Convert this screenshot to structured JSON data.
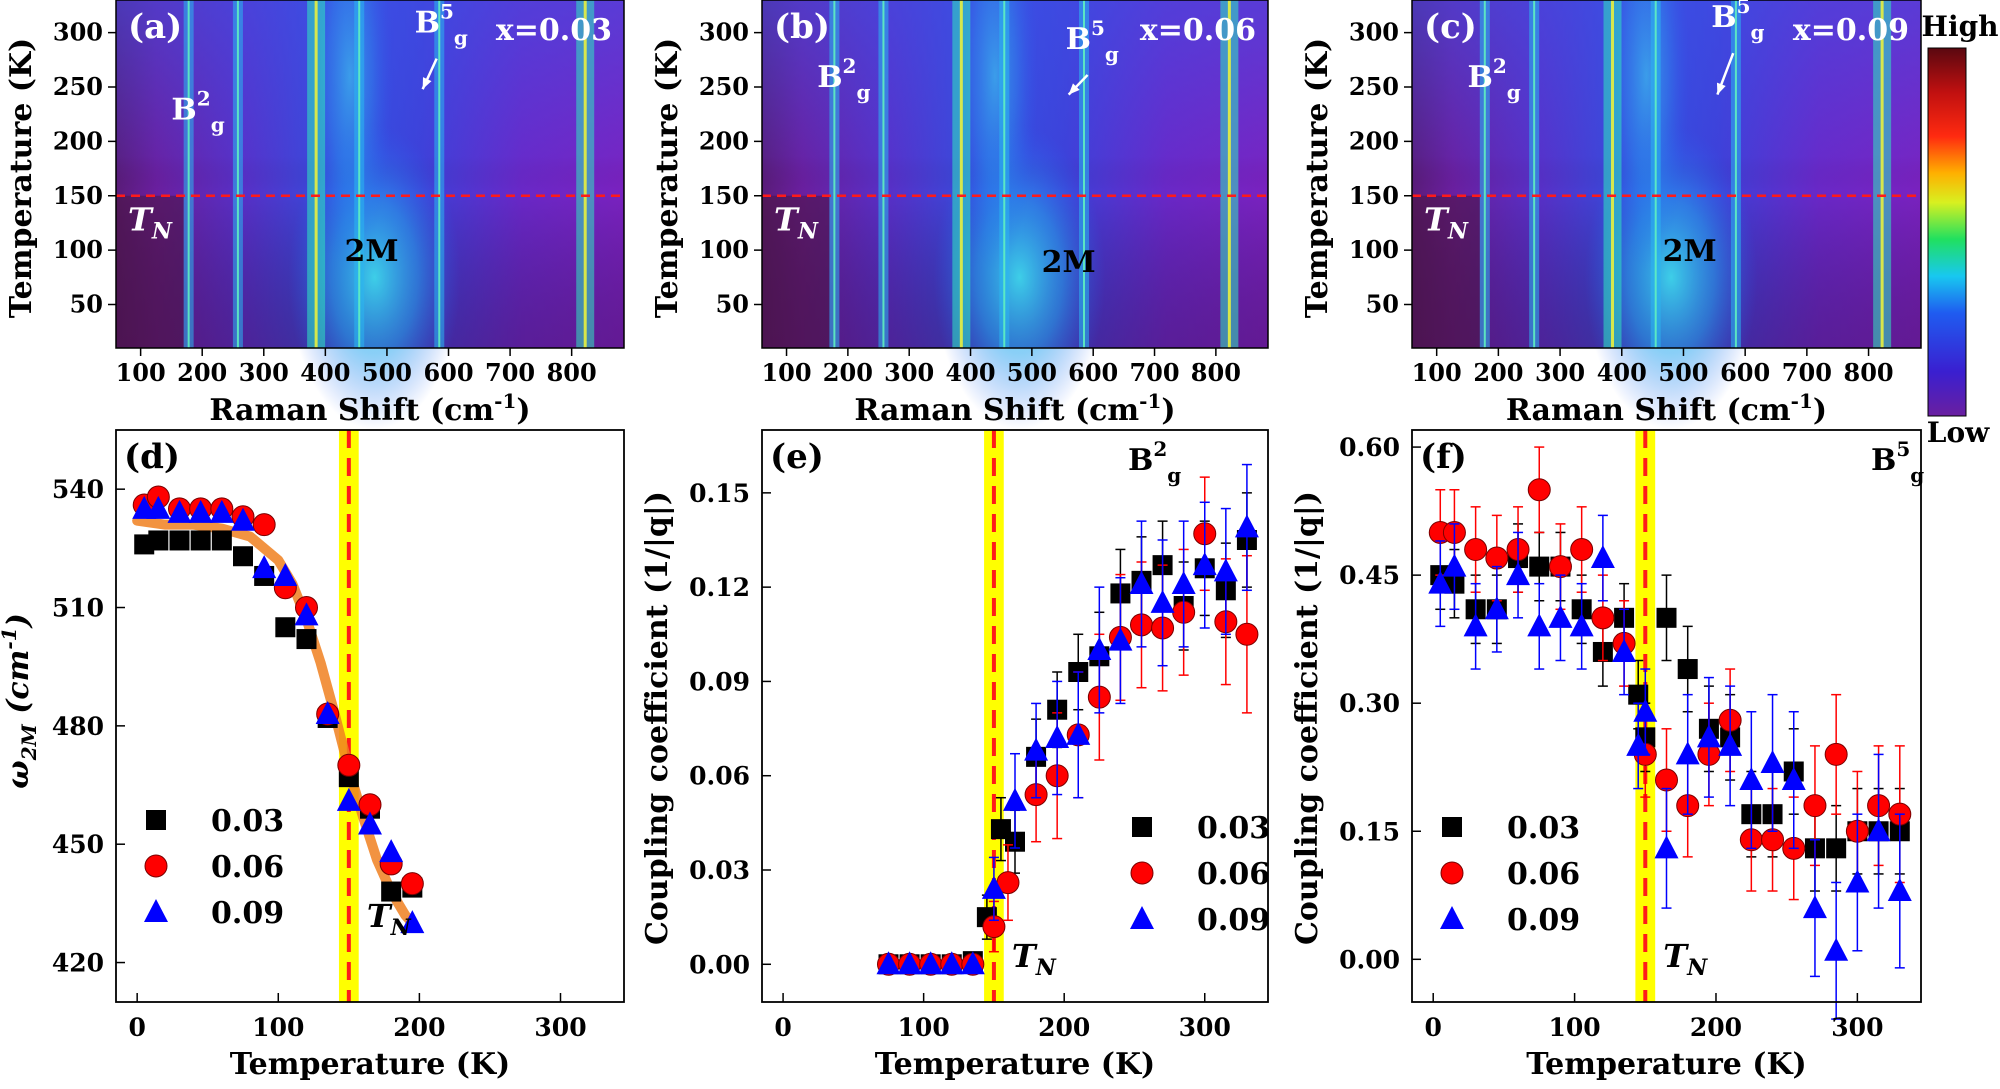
{
  "colorbar": {
    "high": "High",
    "low": "Low"
  },
  "chart_data": [
    {
      "panel": "(a)",
      "type": "heatmap",
      "composition": "x=0.03",
      "xlabel": "Raman Shift (cm",
      "xlabel_sup": "-1",
      "xlabel_tail": ")",
      "ylabel": "Temperature (K)",
      "xticks": [
        100,
        200,
        300,
        400,
        500,
        600,
        700,
        800
      ],
      "xlim": [
        60,
        885
      ],
      "yticks": [
        50,
        100,
        150,
        200,
        250,
        300
      ],
      "ylim": [
        10,
        330
      ],
      "tn_line": 150,
      "tn_label": "T",
      "tn_sub": "N",
      "phonon_lines": [
        178,
        258,
        385,
        455,
        585,
        822
      ],
      "annotations": [
        {
          "text": "B",
          "sup": "2",
          "sub": "g",
          "x": 150,
          "y": 220
        },
        {
          "text": "B",
          "sup": "5",
          "sub": "g",
          "x": 545,
          "y": 300,
          "arrow_to": [
            558,
            248
          ]
        },
        {
          "text": "2M",
          "x": 475,
          "y": 90
        }
      ]
    },
    {
      "panel": "(b)",
      "type": "heatmap",
      "composition": "x=0.06",
      "xlabel": "Raman Shift (cm",
      "xlabel_sup": "-1",
      "xlabel_tail": ")",
      "ylabel": "Temperature (K)",
      "xticks": [
        100,
        200,
        300,
        400,
        500,
        600,
        700,
        800
      ],
      "xlim": [
        60,
        885
      ],
      "yticks": [
        50,
        100,
        150,
        200,
        250,
        300
      ],
      "ylim": [
        10,
        330
      ],
      "tn_line": 150,
      "tn_label": "T",
      "tn_sub": "N",
      "phonon_lines": [
        178,
        258,
        385,
        455,
        585,
        822
      ],
      "annotations": [
        {
          "text": "B",
          "sup": "2",
          "sub": "g",
          "x": 150,
          "y": 250
        },
        {
          "text": "B",
          "sup": "5",
          "sub": "g",
          "x": 555,
          "y": 285,
          "arrow_to": [
            560,
            243
          ]
        },
        {
          "text": "2M",
          "x": 560,
          "y": 80
        }
      ]
    },
    {
      "panel": "(c)",
      "type": "heatmap",
      "composition": "x=0.09",
      "xlabel": "Raman Shift (cm",
      "xlabel_sup": "-1",
      "xlabel_tail": ")",
      "ylabel": "Temperature (K)",
      "xticks": [
        100,
        200,
        300,
        400,
        500,
        600,
        700,
        800
      ],
      "xlim": [
        60,
        885
      ],
      "yticks": [
        50,
        100,
        150,
        200,
        250,
        300
      ],
      "ylim": [
        10,
        330
      ],
      "tn_line": 150,
      "tn_label": "T",
      "tn_sub": "N",
      "phonon_lines": [
        178,
        258,
        385,
        455,
        585,
        822
      ],
      "annotations": [
        {
          "text": "B",
          "sup": "2",
          "sub": "g",
          "x": 150,
          "y": 250
        },
        {
          "text": "B",
          "sup": "5",
          "sub": "g",
          "x": 545,
          "y": 305,
          "arrow_to": [
            555,
            243
          ]
        },
        {
          "text": "2M",
          "x": 510,
          "y": 90
        }
      ]
    },
    {
      "panel": "(d)",
      "type": "scatter",
      "xlabel": "Temperature (K)",
      "ylabel": "ω",
      "ylabel_sub": "2M",
      "ylabel_unit": " (cm",
      "ylabel_sup": "-1",
      "ylabel_tail": ")",
      "xticks": [
        0,
        100,
        200,
        300
      ],
      "xlim": [
        -15,
        345
      ],
      "yticks": [
        420,
        450,
        480,
        510,
        540
      ],
      "ylim": [
        410,
        555
      ],
      "tn_line": 150,
      "tn_label": "T",
      "tn_sub": "N",
      "series": [
        {
          "name": "0.03",
          "marker": "square",
          "color": "#000000",
          "x": [
            5,
            15,
            30,
            45,
            60,
            75,
            90,
            105,
            120,
            135,
            150,
            165,
            180,
            195
          ],
          "y": [
            526,
            527,
            527,
            527,
            527,
            523,
            518,
            505,
            502,
            482,
            467,
            459,
            438,
            439
          ]
        },
        {
          "name": "0.06",
          "marker": "circle",
          "color": "#ff0000",
          "x": [
            5,
            15,
            30,
            45,
            60,
            75,
            90,
            105,
            120,
            135,
            150,
            165,
            180,
            195
          ],
          "y": [
            536,
            538,
            535,
            535,
            535,
            533,
            531,
            515,
            510,
            483,
            470,
            460,
            445,
            440
          ]
        },
        {
          "name": "0.09",
          "marker": "triangle",
          "color": "#0000ff",
          "x": [
            5,
            15,
            30,
            45,
            60,
            75,
            90,
            105,
            120,
            135,
            150,
            165,
            180,
            195
          ],
          "y": [
            535,
            535,
            534,
            534,
            534,
            532,
            520,
            518,
            508,
            483,
            461,
            455,
            448,
            430
          ]
        }
      ],
      "fit": {
        "color": "#f08020",
        "x": [
          0,
          20,
          40,
          60,
          80,
          100,
          110,
          120,
          130,
          140,
          150,
          160,
          170,
          180,
          190,
          195
        ],
        "y": [
          532,
          531,
          531,
          530,
          528,
          522,
          516,
          507,
          496,
          483,
          469,
          457,
          446,
          438,
          432,
          430
        ]
      }
    },
    {
      "panel": "(e)",
      "type": "scatter",
      "mode_label": "B",
      "mode_sup": "2",
      "mode_sub": "g",
      "xlabel": "Temperature (K)",
      "ylabel": "Coupling coefficient (1/|q|)",
      "xticks": [
        0,
        100,
        200,
        300
      ],
      "xlim": [
        -15,
        345
      ],
      "yticks": [
        0.0,
        0.03,
        0.06,
        0.09,
        0.12,
        0.15
      ],
      "ylim": [
        -0.012,
        0.17
      ],
      "tn_line": 150,
      "tn_label": "T",
      "tn_sub": "N",
      "series": [
        {
          "name": "0.03",
          "marker": "square",
          "color": "#000000",
          "x": [
            75,
            90,
            105,
            120,
            135,
            145,
            155,
            165,
            180,
            195,
            210,
            225,
            240,
            255,
            270,
            285,
            300,
            315,
            330
          ],
          "y": [
            0,
            0,
            0,
            0,
            0.001,
            0.015,
            0.043,
            0.039,
            0.066,
            0.081,
            0.093,
            0.098,
            0.118,
            0.122,
            0.127,
            0.114,
            0.126,
            0.119,
            0.135
          ],
          "err": [
            0,
            0,
            0,
            0,
            0.001,
            0.007,
            0.01,
            0.01,
            0.012,
            0.012,
            0.012,
            0.014,
            0.014,
            0.014,
            0.014,
            0.014,
            0.015,
            0.015,
            0.015
          ]
        },
        {
          "name": "0.06",
          "marker": "circle",
          "color": "#ff0000",
          "x": [
            75,
            90,
            105,
            120,
            135,
            150,
            160,
            180,
            195,
            210,
            225,
            240,
            255,
            270,
            285,
            300,
            315,
            330
          ],
          "y": [
            0,
            0,
            0,
            0,
            0,
            0.012,
            0.026,
            0.054,
            0.06,
            0.073,
            0.085,
            0.104,
            0.108,
            0.107,
            0.112,
            0.137,
            0.109,
            0.105
          ],
          "err": [
            0,
            0,
            0,
            0,
            0.001,
            0.008,
            0.012,
            0.015,
            0.02,
            0.02,
            0.02,
            0.02,
            0.02,
            0.02,
            0.02,
            0.018,
            0.02,
            0.025
          ]
        },
        {
          "name": "0.09",
          "marker": "triangle",
          "color": "#0000ff",
          "x": [
            75,
            90,
            105,
            120,
            135,
            150,
            165,
            180,
            195,
            210,
            225,
            240,
            255,
            270,
            285,
            300,
            315,
            330
          ],
          "y": [
            0,
            0,
            0,
            0,
            0,
            0.024,
            0.052,
            0.068,
            0.072,
            0.073,
            0.1,
            0.103,
            0.121,
            0.115,
            0.121,
            0.127,
            0.125,
            0.139
          ],
          "err": [
            0,
            0,
            0,
            0,
            0.001,
            0.01,
            0.015,
            0.015,
            0.018,
            0.02,
            0.02,
            0.02,
            0.02,
            0.02,
            0.02,
            0.02,
            0.02,
            0.02
          ]
        }
      ]
    },
    {
      "panel": "(f)",
      "type": "scatter",
      "mode_label": "B",
      "mode_sup": "5",
      "mode_sub": "g",
      "xlabel": "Temperature (K)",
      "ylabel": "Coupling coefficient (1/|q|)",
      "xticks": [
        0,
        100,
        200,
        300
      ],
      "xlim": [
        -15,
        345
      ],
      "yticks": [
        0.0,
        0.15,
        0.3,
        0.45,
        0.6
      ],
      "ylim": [
        -0.05,
        0.62
      ],
      "tn_line": 150,
      "tn_label": "T",
      "tn_sub": "N",
      "series": [
        {
          "name": "0.03",
          "marker": "square",
          "color": "#000000",
          "x": [
            5,
            15,
            30,
            45,
            60,
            75,
            90,
            105,
            120,
            135,
            145,
            150,
            165,
            180,
            195,
            210,
            225,
            240,
            255,
            270,
            285,
            300,
            315,
            330
          ],
          "y": [
            0.45,
            0.44,
            0.41,
            0.41,
            0.47,
            0.46,
            0.46,
            0.41,
            0.36,
            0.4,
            0.31,
            0.26,
            0.4,
            0.34,
            0.27,
            0.26,
            0.17,
            0.17,
            0.22,
            0.13,
            0.13,
            0.15,
            0.15,
            0.15
          ],
          "err": [
            0.04,
            0.04,
            0.04,
            0.04,
            0.04,
            0.04,
            0.04,
            0.04,
            0.04,
            0.04,
            0.04,
            0.04,
            0.05,
            0.05,
            0.05,
            0.05,
            0.05,
            0.05,
            0.05,
            0.05,
            0.05,
            0.05,
            0.05,
            0.05
          ]
        },
        {
          "name": "0.06",
          "marker": "circle",
          "color": "#ff0000",
          "x": [
            5,
            15,
            30,
            45,
            60,
            75,
            90,
            105,
            120,
            135,
            150,
            165,
            180,
            195,
            210,
            225,
            240,
            255,
            270,
            285,
            300,
            315,
            330
          ],
          "y": [
            0.5,
            0.5,
            0.48,
            0.47,
            0.48,
            0.55,
            0.46,
            0.48,
            0.4,
            0.37,
            0.24,
            0.21,
            0.18,
            0.24,
            0.28,
            0.14,
            0.14,
            0.13,
            0.18,
            0.24,
            0.15,
            0.18,
            0.17
          ],
          "err": [
            0.05,
            0.05,
            0.05,
            0.05,
            0.05,
            0.05,
            0.05,
            0.05,
            0.05,
            0.05,
            0.05,
            0.06,
            0.06,
            0.06,
            0.06,
            0.06,
            0.06,
            0.06,
            0.07,
            0.07,
            0.07,
            0.07,
            0.08
          ]
        },
        {
          "name": "0.09",
          "marker": "triangle",
          "color": "#0000ff",
          "x": [
            5,
            15,
            30,
            45,
            60,
            75,
            90,
            105,
            120,
            135,
            145,
            150,
            165,
            180,
            195,
            210,
            225,
            240,
            255,
            270,
            285,
            300,
            315,
            330
          ],
          "y": [
            0.44,
            0.46,
            0.39,
            0.41,
            0.45,
            0.39,
            0.4,
            0.39,
            0.47,
            0.36,
            0.25,
            0.29,
            0.13,
            0.24,
            0.26,
            0.25,
            0.21,
            0.23,
            0.21,
            0.06,
            0.01,
            0.09,
            0.15,
            0.08
          ],
          "err": [
            0.05,
            0.05,
            0.05,
            0.05,
            0.05,
            0.05,
            0.05,
            0.05,
            0.05,
            0.05,
            0.05,
            0.05,
            0.07,
            0.07,
            0.07,
            0.07,
            0.08,
            0.08,
            0.08,
            0.08,
            0.08,
            0.08,
            0.09,
            0.09
          ]
        }
      ]
    }
  ]
}
